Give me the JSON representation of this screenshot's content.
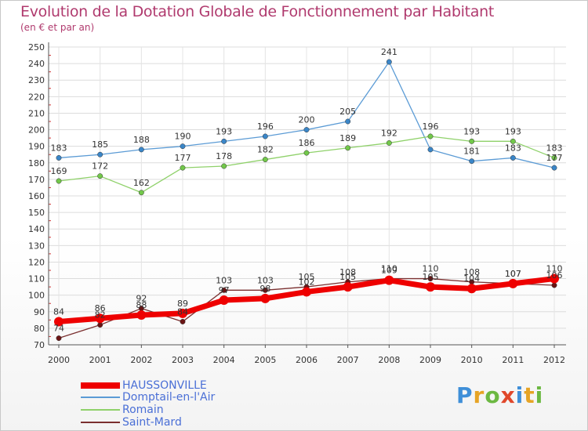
{
  "header": {
    "title": "Evolution de la Dotation Globale de Fonctionnement par Habitant",
    "subtitle": "(en € et par an)"
  },
  "logo": {
    "letters": [
      "P",
      "r",
      "o",
      "x",
      "i",
      "t",
      "i"
    ],
    "colors": [
      "#3f8fd8",
      "#e6a425",
      "#6cb842",
      "#e0482b",
      "#3f8fd8",
      "#e6a425",
      "#6cb842"
    ]
  },
  "chart_data": {
    "type": "line",
    "title": "Evolution de la Dotation Globale de Fonctionnement par Habitant",
    "subtitle": "(en € et par an)",
    "xlabel": "",
    "ylabel": "",
    "x": [
      "2000",
      "2001",
      "2002",
      "2003",
      "2004",
      "2005",
      "2006",
      "2007",
      "2008",
      "2009",
      "2010",
      "2011",
      "2012"
    ],
    "ylim": [
      70,
      250
    ],
    "yticks": [
      70,
      80,
      90,
      100,
      110,
      120,
      130,
      140,
      150,
      160,
      170,
      180,
      190,
      200,
      210,
      220,
      230,
      240,
      250
    ],
    "grid": true,
    "legend_position": "bottom-left",
    "series": [
      {
        "name": "Domptail-en-l'Air",
        "color": "#5b9bd5",
        "point_color": "#3a86c8",
        "values": [
          183,
          185,
          188,
          190,
          193,
          196,
          200,
          205,
          241,
          188,
          181,
          183,
          177
        ],
        "labels": [
          "183",
          "185",
          "188",
          "190",
          "193",
          "196",
          "200",
          "205",
          "241",
          "",
          "181",
          "183",
          "177"
        ]
      },
      {
        "name": "Romain",
        "color": "#8fd16a",
        "point_color": "#72c84a",
        "values": [
          169,
          172,
          162,
          177,
          178,
          182,
          186,
          189,
          192,
          196,
          193,
          193,
          183
        ],
        "labels": [
          "169",
          "172",
          "162",
          "177",
          "178",
          "182",
          "186",
          "189",
          "192",
          "196",
          "193",
          "193",
          "183"
        ]
      },
      {
        "name": "Saint-Mard",
        "color": "#7a2f2f",
        "point_color": "#6b1414",
        "values": [
          74,
          82,
          92,
          84,
          103,
          103,
          105,
          108,
          110,
          110,
          108,
          107,
          106
        ],
        "labels": [
          "74",
          "82",
          "92",
          "84",
          "103",
          "103",
          "105",
          "108",
          "110",
          "110",
          "108",
          "107",
          "106"
        ]
      },
      {
        "name": "HAUSSONVILLE",
        "color": "#ee0000",
        "point_color": "#ee0000",
        "values": [
          84,
          86,
          88,
          89,
          97,
          98,
          102,
          105,
          109,
          105,
          104,
          107,
          110
        ],
        "labels": [
          "84",
          "86",
          "88",
          "89",
          "97",
          "98",
          "102",
          "105",
          "109",
          "105",
          "104",
          "107",
          "110"
        ]
      }
    ],
    "legend": [
      "HAUSSONVILLE",
      "Domptail-en-l'Air",
      "Romain",
      "Saint-Mard"
    ]
  }
}
